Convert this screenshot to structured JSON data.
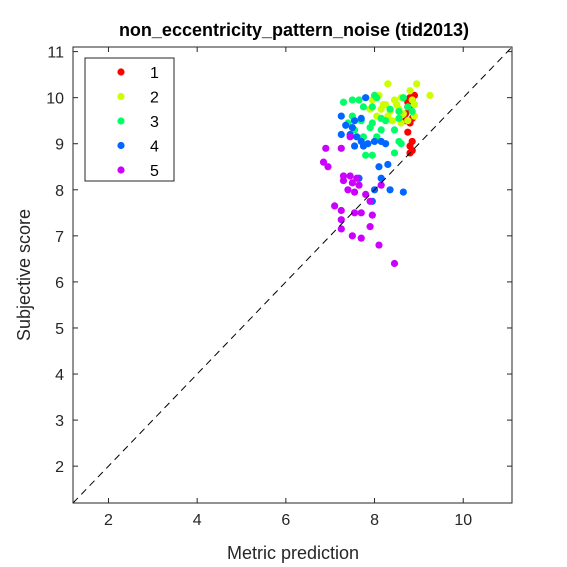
{
  "chart_data": {
    "type": "scatter",
    "title": "non_eccentricity_pattern_noise (tid2013)",
    "xlabel": "Metric prediction",
    "ylabel": "Subjective score",
    "xlim": [
      1.2,
      11.1
    ],
    "ylim": [
      1.2,
      11.1
    ],
    "xticks": [
      2,
      4,
      6,
      8,
      10
    ],
    "yticks": [
      2,
      3,
      4,
      5,
      6,
      7,
      8,
      9,
      10,
      11
    ],
    "grid": false,
    "legend_position": "top-left",
    "reference_line": "identity-dashed",
    "series": [
      {
        "name": "1",
        "color": "#ff0000",
        "points": [
          [
            8.8,
            10.0
          ],
          [
            8.85,
            9.95
          ],
          [
            8.75,
            9.9
          ],
          [
            8.8,
            9.75
          ],
          [
            8.7,
            9.65
          ],
          [
            8.85,
            9.55
          ],
          [
            8.8,
            9.45
          ],
          [
            8.75,
            9.25
          ],
          [
            8.8,
            8.95
          ],
          [
            8.85,
            8.85
          ],
          [
            8.8,
            8.8
          ],
          [
            8.9,
            10.05
          ],
          [
            8.75,
            9.8
          ],
          [
            8.7,
            9.5
          ],
          [
            8.85,
            9.05
          ]
        ]
      },
      {
        "name": "2",
        "color": "#ccff00",
        "points": [
          [
            8.3,
            10.3
          ],
          [
            8.95,
            10.3
          ],
          [
            9.25,
            10.05
          ],
          [
            8.8,
            10.15
          ],
          [
            8.85,
            9.95
          ],
          [
            8.6,
            10.0
          ],
          [
            8.45,
            9.95
          ],
          [
            8.25,
            9.85
          ],
          [
            8.15,
            9.75
          ],
          [
            8.35,
            9.7
          ],
          [
            8.55,
            9.75
          ],
          [
            8.65,
            9.65
          ],
          [
            8.9,
            9.6
          ],
          [
            8.05,
            9.6
          ],
          [
            7.9,
            9.75
          ],
          [
            8.1,
            10.05
          ],
          [
            8.4,
            9.5
          ],
          [
            8.75,
            9.5
          ],
          [
            8.2,
            9.85
          ],
          [
            8.5,
            9.85
          ],
          [
            8.9,
            9.85
          ],
          [
            7.95,
            9.95
          ],
          [
            8.3,
            9.6
          ],
          [
            8.6,
            9.45
          ]
        ]
      },
      {
        "name": "3",
        "color": "#00ff66",
        "points": [
          [
            7.3,
            9.9
          ],
          [
            7.5,
            9.95
          ],
          [
            7.65,
            9.95
          ],
          [
            8.0,
            10.05
          ],
          [
            8.05,
            10.0
          ],
          [
            8.65,
            10.0
          ],
          [
            7.75,
            9.8
          ],
          [
            7.95,
            9.8
          ],
          [
            8.35,
            9.75
          ],
          [
            8.55,
            9.7
          ],
          [
            8.75,
            9.8
          ],
          [
            7.4,
            9.45
          ],
          [
            7.7,
            9.5
          ],
          [
            7.95,
            9.45
          ],
          [
            8.25,
            9.5
          ],
          [
            8.55,
            9.55
          ],
          [
            7.55,
            9.3
          ],
          [
            7.9,
            9.35
          ],
          [
            8.15,
            9.3
          ],
          [
            8.45,
            9.3
          ],
          [
            7.75,
            9.15
          ],
          [
            8.05,
            9.15
          ],
          [
            8.55,
            9.05
          ],
          [
            7.8,
            8.75
          ],
          [
            7.95,
            8.75
          ],
          [
            8.45,
            8.8
          ],
          [
            8.6,
            9.0
          ],
          [
            8.15,
            9.55
          ],
          [
            7.5,
            9.6
          ],
          [
            8.85,
            9.7
          ]
        ]
      },
      {
        "name": "4",
        "color": "#0066ff",
        "points": [
          [
            7.8,
            10.0
          ],
          [
            7.25,
            9.6
          ],
          [
            7.55,
            9.5
          ],
          [
            7.7,
            9.55
          ],
          [
            7.35,
            9.4
          ],
          [
            7.5,
            9.35
          ],
          [
            7.25,
            9.2
          ],
          [
            7.45,
            9.2
          ],
          [
            7.6,
            9.15
          ],
          [
            7.7,
            9.05
          ],
          [
            7.85,
            9.0
          ],
          [
            8.0,
            9.05
          ],
          [
            8.15,
            9.05
          ],
          [
            8.25,
            9.0
          ],
          [
            7.55,
            8.95
          ],
          [
            7.75,
            8.95
          ],
          [
            8.1,
            8.5
          ],
          [
            8.3,
            8.55
          ],
          [
            8.15,
            8.25
          ],
          [
            8.65,
            7.95
          ],
          [
            7.95,
            7.75
          ],
          [
            8.0,
            8.0
          ],
          [
            8.35,
            8.0
          ],
          [
            7.65,
            8.25
          ]
        ]
      },
      {
        "name": "5",
        "color": "#cc00ff",
        "points": [
          [
            7.25,
            8.9
          ],
          [
            6.9,
            8.9
          ],
          [
            6.85,
            8.6
          ],
          [
            6.95,
            8.5
          ],
          [
            7.45,
            9.15
          ],
          [
            7.3,
            8.3
          ],
          [
            7.45,
            8.3
          ],
          [
            7.6,
            8.25
          ],
          [
            7.3,
            8.2
          ],
          [
            7.5,
            8.15
          ],
          [
            7.65,
            8.1
          ],
          [
            7.4,
            8.0
          ],
          [
            7.55,
            7.95
          ],
          [
            7.8,
            7.9
          ],
          [
            8.15,
            8.1
          ],
          [
            7.1,
            7.65
          ],
          [
            7.25,
            7.55
          ],
          [
            7.9,
            7.75
          ],
          [
            7.55,
            7.5
          ],
          [
            7.7,
            7.5
          ],
          [
            7.25,
            7.35
          ],
          [
            7.95,
            7.45
          ],
          [
            7.25,
            7.15
          ],
          [
            7.5,
            7.0
          ],
          [
            7.7,
            6.95
          ],
          [
            8.1,
            6.8
          ],
          [
            8.45,
            6.4
          ],
          [
            7.9,
            7.2
          ]
        ]
      }
    ]
  }
}
